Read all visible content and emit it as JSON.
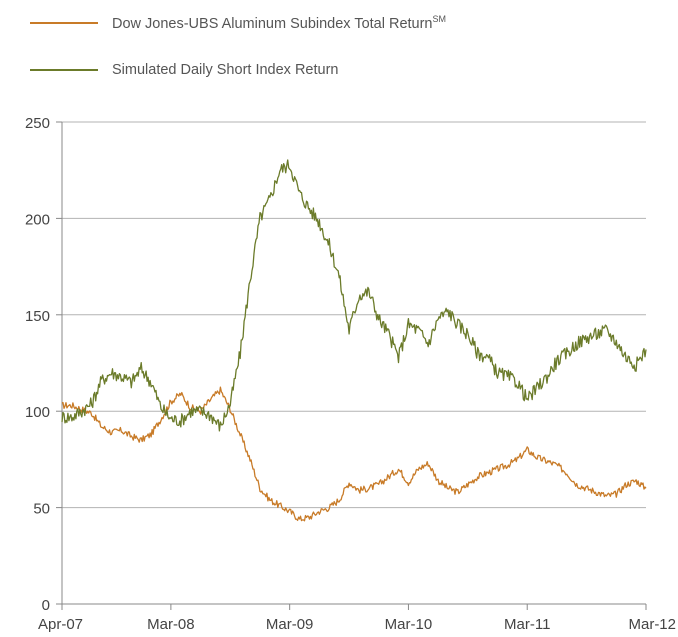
{
  "legend": {
    "series1_label": "Dow Jones-UBS Aluminum Subindex Total Return",
    "series1_sup": "SM",
    "series2_label": "Simulated Daily Short Index Return"
  },
  "colors": {
    "series1": "#c87b28",
    "series2": "#6b7b2a",
    "grid": "#b3b3b3",
    "axis": "#888888"
  },
  "chart_data": {
    "type": "line",
    "title": "",
    "xlabel": "",
    "ylabel": "",
    "ylim": [
      0,
      250
    ],
    "yticks": [
      0,
      50,
      100,
      150,
      200,
      250
    ],
    "x_tick_labels": [
      "Apr-07",
      "Mar-08",
      "Mar-09",
      "Mar-10",
      "Mar-11",
      "Mar-12"
    ],
    "x_tick_dates": [
      "2007-04",
      "2008-03",
      "2009-03",
      "2010-03",
      "2011-03",
      "2012-03"
    ],
    "grid": "horizontal",
    "legend_position": "top-left",
    "series": [
      {
        "name": "Dow Jones-UBS Aluminum Subindex Total Return℠",
        "x": [
          "2007-04",
          "2007-05",
          "2007-06",
          "2007-07",
          "2007-08",
          "2007-09",
          "2007-10",
          "2007-11",
          "2007-12",
          "2008-01",
          "2008-02",
          "2008-03",
          "2008-04",
          "2008-05",
          "2008-06",
          "2008-07",
          "2008-08",
          "2008-09",
          "2008-10",
          "2008-11",
          "2008-12",
          "2009-01",
          "2009-02",
          "2009-03",
          "2009-04",
          "2009-05",
          "2009-06",
          "2009-07",
          "2009-08",
          "2009-09",
          "2009-10",
          "2009-11",
          "2009-12",
          "2010-01",
          "2010-02",
          "2010-03",
          "2010-04",
          "2010-05",
          "2010-06",
          "2010-07",
          "2010-08",
          "2010-09",
          "2010-10",
          "2010-11",
          "2010-12",
          "2011-01",
          "2011-02",
          "2011-03",
          "2011-04",
          "2011-05",
          "2011-06",
          "2011-07",
          "2011-08",
          "2011-09",
          "2011-10",
          "2011-11",
          "2011-12",
          "2012-01",
          "2012-02",
          "2012-03"
        ],
        "values": [
          103,
          103,
          101,
          99,
          92,
          89,
          90,
          87,
          85,
          88,
          96,
          105,
          109,
          102,
          100,
          106,
          111,
          101,
          88,
          75,
          60,
          54,
          51,
          48,
          44,
          45,
          48,
          50,
          54,
          63,
          59,
          60,
          62,
          66,
          70,
          63,
          70,
          73,
          64,
          60,
          58,
          62,
          66,
          68,
          70,
          72,
          75,
          80,
          76,
          74,
          72,
          68,
          62,
          60,
          58,
          56,
          57,
          62,
          64,
          60
        ]
      },
      {
        "name": "Simulated Daily Short Index Return",
        "x": [
          "2007-04",
          "2007-05",
          "2007-06",
          "2007-07",
          "2007-08",
          "2007-09",
          "2007-10",
          "2007-11",
          "2007-12",
          "2008-01",
          "2008-02",
          "2008-03",
          "2008-04",
          "2008-05",
          "2008-06",
          "2008-07",
          "2008-08",
          "2008-09",
          "2008-10",
          "2008-11",
          "2008-12",
          "2009-01",
          "2009-02",
          "2009-03",
          "2009-04",
          "2009-05",
          "2009-06",
          "2009-07",
          "2009-08",
          "2009-09",
          "2009-10",
          "2009-11",
          "2009-12",
          "2010-01",
          "2010-02",
          "2010-03",
          "2010-04",
          "2010-05",
          "2010-06",
          "2010-07",
          "2010-08",
          "2010-09",
          "2010-10",
          "2010-11",
          "2010-12",
          "2011-01",
          "2011-02",
          "2011-03",
          "2011-04",
          "2011-05",
          "2011-06",
          "2011-07",
          "2011-08",
          "2011-09",
          "2011-10",
          "2011-11",
          "2011-12",
          "2012-01",
          "2012-02",
          "2012-03"
        ],
        "values": [
          97,
          97,
          100,
          104,
          116,
          120,
          118,
          115,
          122,
          115,
          102,
          96,
          95,
          100,
          100,
          98,
          92,
          104,
          130,
          168,
          200,
          210,
          225,
          228,
          213,
          205,
          198,
          186,
          170,
          142,
          160,
          162,
          148,
          140,
          128,
          145,
          142,
          135,
          148,
          152,
          145,
          140,
          130,
          128,
          120,
          118,
          115,
          106,
          112,
          118,
          126,
          130,
          135,
          138,
          140,
          142,
          136,
          128,
          124,
          132
        ]
      }
    ]
  }
}
